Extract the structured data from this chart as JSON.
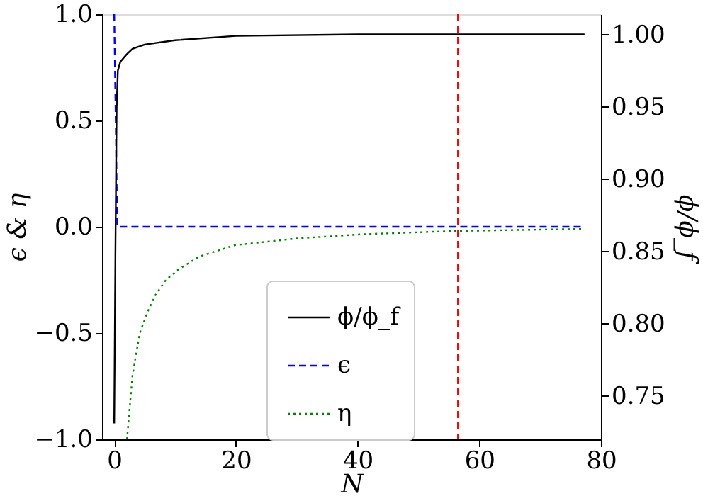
{
  "chart_data": {
    "type": "line",
    "xlabel": "N",
    "ylabel": "ϵ & η",
    "y2label": "ϕ/ϕ_f",
    "xlim": [
      -2,
      80
    ],
    "xticks": [
      0,
      20,
      40,
      60,
      80
    ],
    "ylim": [
      -1,
      1
    ],
    "yticks": [
      {
        "value": -1,
        "label": "−1.0"
      },
      {
        "value": -0.5,
        "label": "−0.5"
      },
      {
        "value": 0,
        "label": "0.0"
      },
      {
        "value": 0.5,
        "label": "0.5"
      },
      {
        "value": 1,
        "label": "1.0"
      }
    ],
    "y2lim": [
      0.72,
      1.014
    ],
    "y2ticks": [
      {
        "value": 0.75,
        "label": "0.75"
      },
      {
        "value": 0.8,
        "label": "0.80"
      },
      {
        "value": 0.85,
        "label": "0.85"
      },
      {
        "value": 0.9,
        "label": "0.90"
      },
      {
        "value": 0.95,
        "label": "0.95"
      },
      {
        "value": 1,
        "label": "1.00"
      }
    ],
    "series": [
      {
        "name": "ϕ/ϕ_f",
        "color": "#000000",
        "axis": "y2",
        "line_style": "solid",
        "x": [
          0,
          0.2,
          0.4,
          0.6,
          1,
          2,
          3,
          5,
          10,
          20,
          40,
          60,
          77.3
        ],
        "values": [
          0.731,
          0.85,
          0.95,
          0.975,
          0.981,
          0.986,
          0.99,
          0.993,
          0.996,
          0.999,
          1.0,
          1.0,
          1.0
        ]
      },
      {
        "name": "ϵ",
        "color": "#0000ff",
        "line_style": "dashed",
        "x": [
          0,
          0.5,
          77.3
        ],
        "values": [
          1,
          0,
          0
        ]
      },
      {
        "name": "η",
        "color": "#008000",
        "line_style": "dotted",
        "x": [
          2.1,
          3,
          4.2,
          5.5,
          6.8,
          8.5,
          10.6,
          14,
          19.8,
          30,
          40.9,
          56,
          77.3
        ],
        "values": [
          -1,
          -0.7,
          -0.5,
          -0.4,
          -0.32,
          -0.25,
          -0.2,
          -0.14,
          -0.087,
          -0.055,
          -0.035,
          -0.02,
          -0.01
        ]
      }
    ],
    "ref_lines": [
      {
        "axis": "x",
        "value": 56.5,
        "color": "#ff0000",
        "line_style": "dashed"
      }
    ],
    "grid": false,
    "legend": "bottom"
  }
}
